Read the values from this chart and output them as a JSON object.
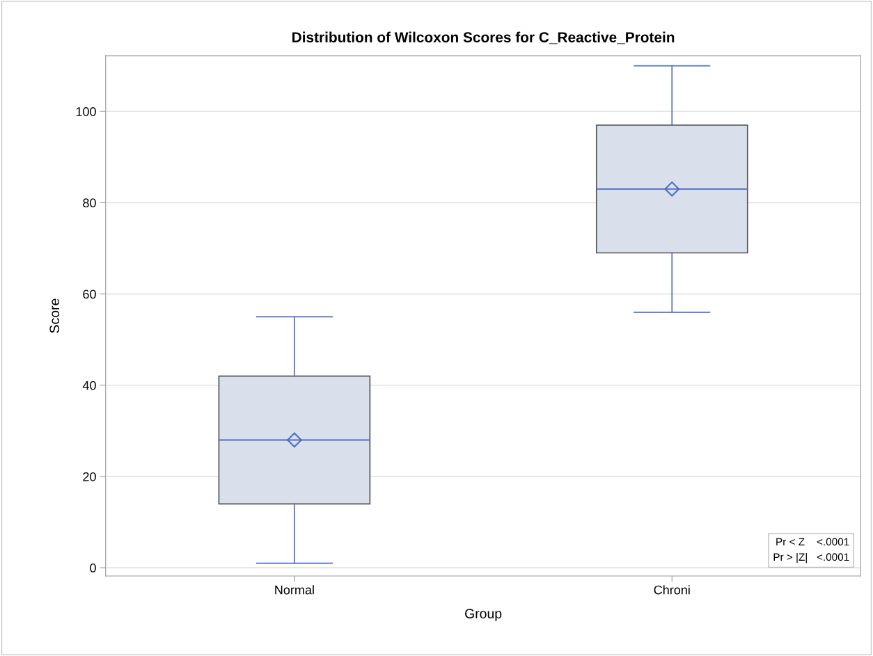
{
  "chart_data": {
    "type": "box",
    "title": "Distribution of Wilcoxon Scores for C_Reactive_Protein",
    "xlabel": "Group",
    "ylabel": "Score",
    "categories": [
      "Normal",
      "Chroni"
    ],
    "boxes": [
      {
        "low": 1,
        "q1": 14,
        "median": 28,
        "q3": 42,
        "high": 55,
        "mean": 28
      },
      {
        "low": 56,
        "q1": 69,
        "median": 83,
        "q3": 97,
        "high": 110,
        "mean": 83
      }
    ],
    "color": "#d9e0eb",
    "ylim": [
      -1.8,
      112.2
    ],
    "yticks": [
      0,
      20,
      40,
      60,
      80,
      100
    ],
    "grid": "y",
    "marker": "diamond",
    "annotations": [
      "Pr < Z    <.0001",
      "Pr > |Z|   <.0001"
    ]
  }
}
